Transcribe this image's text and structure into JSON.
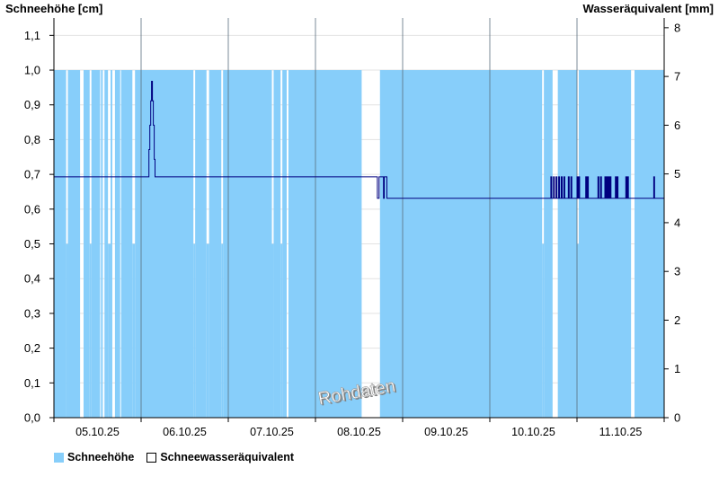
{
  "chart_data": {
    "type": "bar+line",
    "left_axis_title": "Schneehöhe [cm]",
    "right_axis_title": "Wasseräquivalent [mm]",
    "watermark": "Rohdaten",
    "left_ticks": [
      "0,0",
      "0,1",
      "0,2",
      "0,3",
      "0,4",
      "0,5",
      "0,6",
      "0,7",
      "0,8",
      "0,9",
      "1,0",
      "1,1"
    ],
    "right_ticks": [
      "0",
      "1",
      "2",
      "3",
      "4",
      "5",
      "6",
      "7",
      "8"
    ],
    "x_ticks": [
      "05.10.25",
      "06.10.25",
      "07.10.25",
      "08.10.25",
      "09.10.25",
      "10.10.25",
      "11.10.25"
    ],
    "ylim_left": [
      0,
      1.15
    ],
    "ylim_right": [
      0,
      8.2
    ],
    "xlim_days": [
      0,
      7
    ],
    "grid": true,
    "legend_position": "bottom-left",
    "series": [
      {
        "name": "Schneehöhe",
        "type": "bar",
        "color": "#87CEFA",
        "segments": [
          {
            "start": 0.0,
            "end": 0.14,
            "value": 1.0
          },
          {
            "start": 0.14,
            "end": 0.16,
            "value": 0.5
          },
          {
            "start": 0.16,
            "end": 0.3,
            "value": 1.0
          },
          {
            "start": 0.34,
            "end": 0.41,
            "value": 1.0
          },
          {
            "start": 0.41,
            "end": 0.43,
            "value": 0.5
          },
          {
            "start": 0.43,
            "end": 0.53,
            "value": 1.0
          },
          {
            "start": 0.54,
            "end": 0.56,
            "value": 1.0
          },
          {
            "start": 0.58,
            "end": 0.62,
            "value": 1.0
          },
          {
            "start": 0.62,
            "end": 0.65,
            "value": 0.5
          },
          {
            "start": 0.65,
            "end": 0.67,
            "value": 1.0
          },
          {
            "start": 0.7,
            "end": 0.76,
            "value": 1.0
          },
          {
            "start": 0.77,
            "end": 0.9,
            "value": 1.0
          },
          {
            "start": 0.9,
            "end": 0.93,
            "value": 0.5
          },
          {
            "start": 0.93,
            "end": 1.6,
            "value": 1.0
          },
          {
            "start": 1.6,
            "end": 1.62,
            "value": 0.5
          },
          {
            "start": 1.62,
            "end": 1.75,
            "value": 1.0
          },
          {
            "start": 1.75,
            "end": 1.78,
            "value": 0.5
          },
          {
            "start": 1.78,
            "end": 1.92,
            "value": 1.0
          },
          {
            "start": 1.92,
            "end": 1.94,
            "value": 0.5
          },
          {
            "start": 1.94,
            "end": 2.5,
            "value": 1.0
          },
          {
            "start": 2.5,
            "end": 2.52,
            "value": 0.5
          },
          {
            "start": 2.52,
            "end": 2.6,
            "value": 1.0
          },
          {
            "start": 2.6,
            "end": 2.62,
            "value": 0.5
          },
          {
            "start": 2.62,
            "end": 2.67,
            "value": 1.0
          },
          {
            "start": 2.69,
            "end": 3.53,
            "value": 1.0
          },
          {
            "start": 3.74,
            "end": 5.6,
            "value": 1.0
          },
          {
            "start": 5.6,
            "end": 5.62,
            "value": 0.5
          },
          {
            "start": 5.62,
            "end": 5.72,
            "value": 1.0
          },
          {
            "start": 5.78,
            "end": 6.0,
            "value": 1.0
          },
          {
            "start": 6.0,
            "end": 6.02,
            "value": 0.5
          },
          {
            "start": 6.02,
            "end": 6.62,
            "value": 1.0
          },
          {
            "start": 6.66,
            "end": 7.0,
            "value": 1.0
          }
        ]
      },
      {
        "name": "Schneewasseräquivalent",
        "type": "line",
        "color": "#000080",
        "x": [
          0.0,
          1.08,
          1.09,
          1.1,
          1.11,
          1.12,
          1.13,
          1.14,
          1.15,
          1.16,
          3.7,
          3.71,
          3.73,
          3.74,
          3.78,
          3.79,
          3.81,
          3.82,
          5.7,
          5.71,
          5.73,
          5.74,
          5.76,
          5.77,
          5.79,
          5.8,
          5.82,
          5.83,
          5.85,
          5.86,
          5.9,
          5.91,
          5.93,
          5.94,
          6.0,
          6.01,
          6.02,
          6.03,
          6.1,
          6.11,
          6.12,
          6.13,
          6.24,
          6.25,
          6.27,
          6.28,
          6.32,
          6.33,
          6.34,
          6.35,
          6.36,
          6.37,
          6.38,
          6.39,
          6.44,
          6.45,
          6.46,
          6.47,
          6.56,
          6.57,
          6.58,
          6.59,
          6.88,
          6.89,
          7.0
        ],
        "values": [
          4.94,
          4.94,
          5.5,
          6.0,
          6.5,
          6.9,
          6.5,
          6.0,
          5.3,
          4.94,
          4.94,
          4.5,
          4.94,
          4.94,
          4.5,
          4.94,
          4.94,
          4.5,
          4.94,
          4.5,
          4.94,
          4.5,
          4.94,
          4.5,
          4.94,
          4.5,
          4.94,
          4.5,
          4.94,
          4.5,
          4.94,
          4.5,
          4.94,
          4.5,
          4.94,
          4.5,
          4.94,
          4.5,
          4.94,
          4.5,
          4.94,
          4.5,
          4.94,
          4.5,
          4.94,
          4.5,
          4.94,
          4.5,
          4.94,
          4.5,
          4.94,
          4.5,
          4.94,
          4.5,
          4.94,
          4.5,
          4.94,
          4.5,
          4.94,
          4.5,
          4.94,
          4.5,
          4.94,
          4.5,
          4.94
        ]
      }
    ]
  }
}
